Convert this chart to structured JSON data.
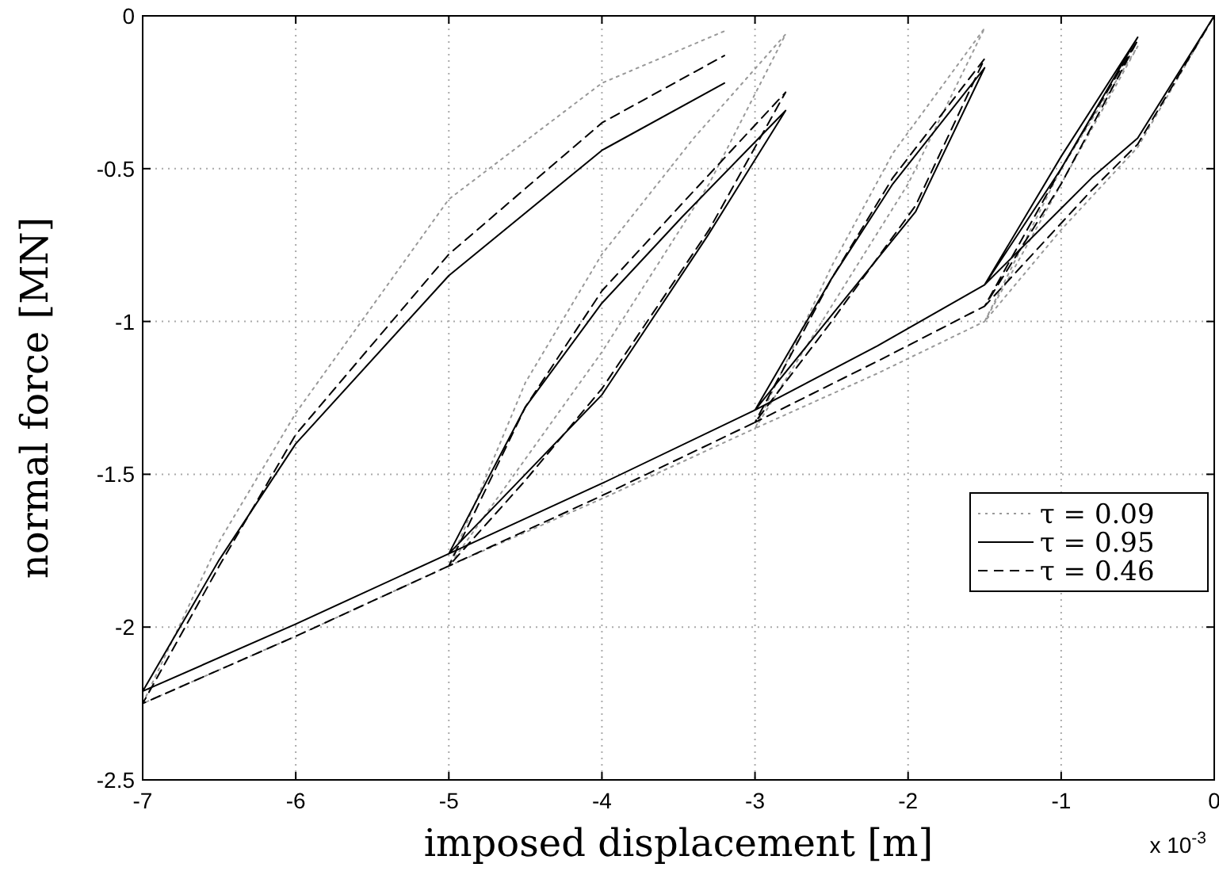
{
  "chart_data": {
    "type": "line",
    "xlabel": "imposed displacement [m]",
    "ylabel": "normal force [MN]",
    "xlim": [
      -7,
      0
    ],
    "ylim": [
      -2.5,
      0
    ],
    "xticks": [
      -7,
      -6,
      -5,
      -4,
      -3,
      -2,
      -1,
      0
    ],
    "yticks": [
      -2.5,
      -2,
      -1.5,
      -1,
      -0.5,
      0
    ],
    "grid": true,
    "legend": "right",
    "annotations": [
      "x 10$^{-3}$"
    ],
    "series": [
      {
        "name": "τ = 0.09",
        "color": "#999999",
        "line_style": "dotted",
        "x": [
          0,
          -0.5,
          -1,
          -1.5,
          -1.0,
          -0.5,
          -1.0,
          -1.5,
          -2.2,
          -3,
          -2.5,
          -2.1,
          -1.5,
          -2.0,
          -2.5,
          -3,
          -4,
          -5,
          -4.5,
          -4,
          -3.4,
          -2.8,
          -3.3,
          -4,
          -4.5,
          -5,
          -6,
          -7,
          -6.5,
          -6,
          -5,
          -4,
          -3.2
        ],
        "values": [
          0,
          -0.43,
          -0.7,
          -1.0,
          -0.5,
          -0.1,
          -0.55,
          -1.0,
          -1.17,
          -1.35,
          -0.82,
          -0.45,
          -0.04,
          -0.55,
          -0.95,
          -1.35,
          -1.58,
          -1.8,
          -1.2,
          -0.78,
          -0.4,
          -0.06,
          -0.55,
          -1.1,
          -1.45,
          -1.8,
          -2.03,
          -2.25,
          -1.72,
          -1.3,
          -0.6,
          -0.22,
          -0.05
        ]
      },
      {
        "name": "τ = 0.95",
        "color": "#000000",
        "line_style": "solid",
        "x": [
          0,
          -0.25,
          -0.5,
          -0.8,
          -1.5,
          -1.0,
          -0.5,
          -1.0,
          -1.5,
          -2.2,
          -3,
          -2.5,
          -2.1,
          -1.5,
          -1.95,
          -2.5,
          -3,
          -4,
          -5,
          -4.5,
          -4,
          -3.48,
          -2.8,
          -3.31,
          -4,
          -4.5,
          -5,
          -6,
          -7,
          -6.5,
          -6,
          -5,
          -4,
          -3.2
        ],
        "values": [
          0,
          -0.2,
          -0.4,
          -0.53,
          -0.88,
          -0.46,
          -0.07,
          -0.5,
          -0.88,
          -1.08,
          -1.29,
          -0.86,
          -0.55,
          -0.17,
          -0.64,
          -0.98,
          -1.29,
          -1.53,
          -1.76,
          -1.28,
          -0.94,
          -0.66,
          -0.31,
          -0.72,
          -1.24,
          -1.5,
          -1.76,
          -1.99,
          -2.21,
          -1.78,
          -1.4,
          -0.85,
          -0.44,
          -0.22
        ]
      },
      {
        "name": "τ = 0.46",
        "color": "#000000",
        "line_style": "dashed",
        "x": [
          0,
          -0.25,
          -0.5,
          -0.8,
          -1.5,
          -1.0,
          -0.5,
          -1.0,
          -1.5,
          -2.2,
          -3,
          -2.5,
          -2.1,
          -1.5,
          -1.95,
          -2.5,
          -3,
          -4,
          -5,
          -4.5,
          -4,
          -3.45,
          -2.8,
          -3.3,
          -4,
          -4.5,
          -5,
          -6,
          -7,
          -6.5,
          -6,
          -5,
          -4,
          -3.2
        ],
        "values": [
          0,
          -0.21,
          -0.42,
          -0.57,
          -0.95,
          -0.5,
          -0.08,
          -0.55,
          -0.95,
          -1.13,
          -1.33,
          -0.86,
          -0.53,
          -0.14,
          -0.62,
          -1.0,
          -1.33,
          -1.57,
          -1.8,
          -1.28,
          -0.9,
          -0.6,
          -0.25,
          -0.7,
          -1.22,
          -1.52,
          -1.8,
          -2.03,
          -2.25,
          -1.8,
          -1.37,
          -0.78,
          -0.35,
          -0.13
        ]
      }
    ]
  }
}
